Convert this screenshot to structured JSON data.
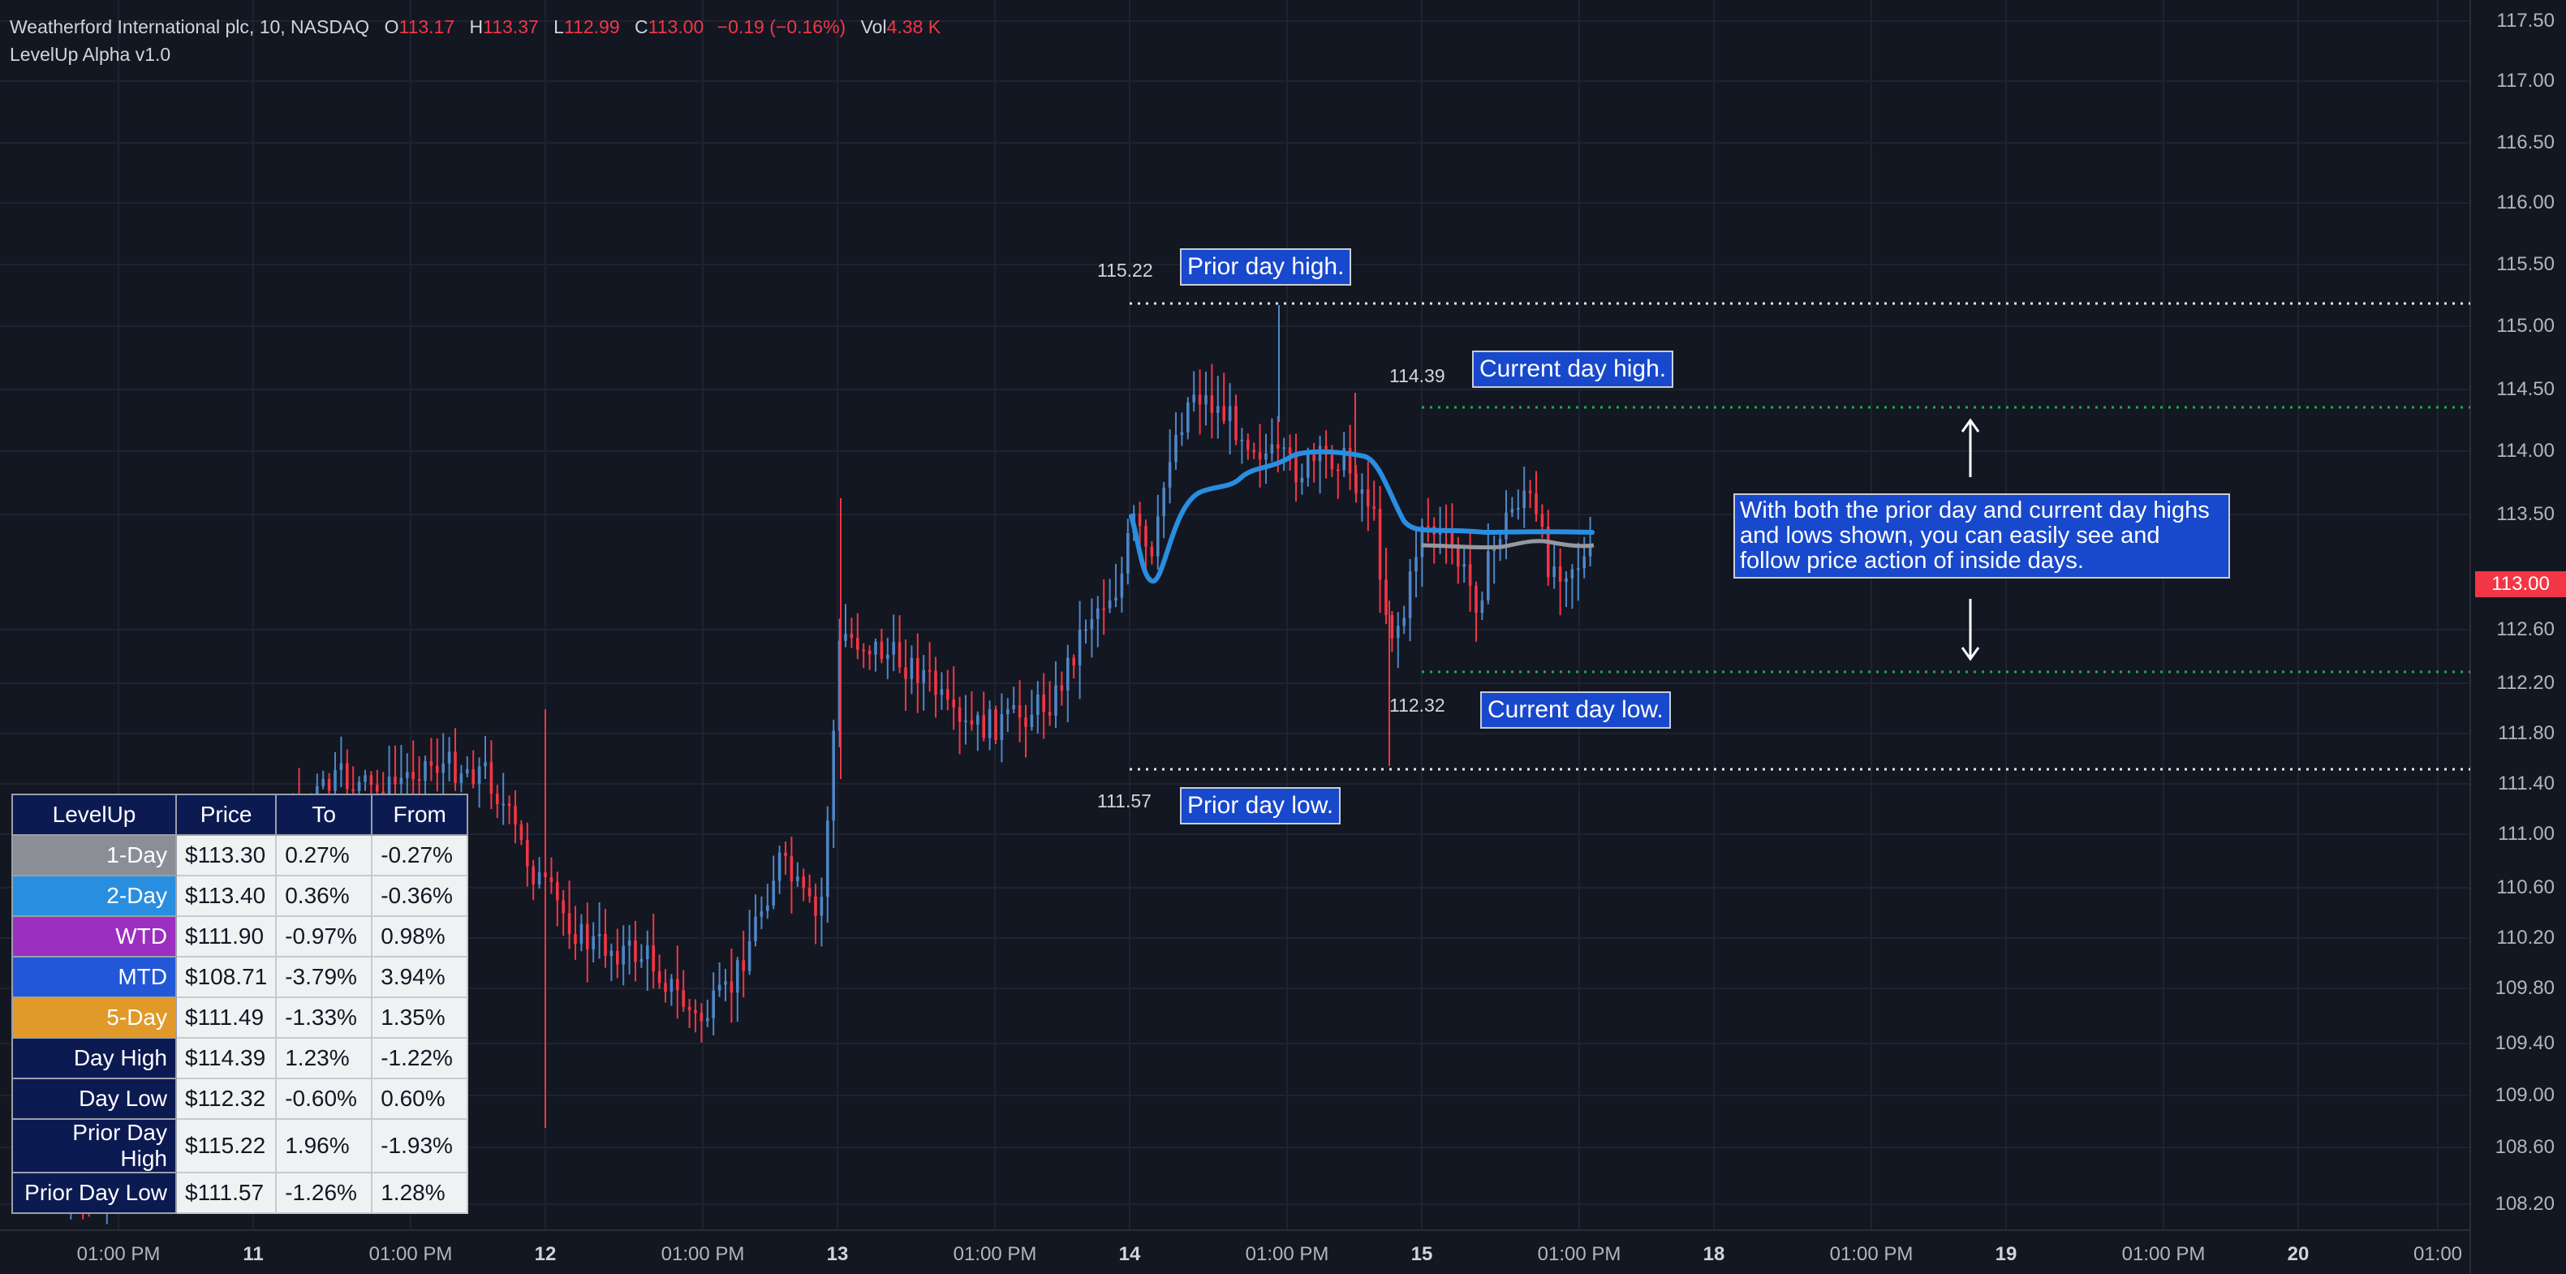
{
  "header": {
    "symbol": "Weatherford International plc, 10, NASDAQ",
    "open_label": "O",
    "open": "113.17",
    "high_label": "H",
    "high": "113.37",
    "low_label": "L",
    "low": "112.99",
    "close_label": "C",
    "close": "113.00",
    "change": "−0.19 (−0.16%)",
    "vol_label": "Vol",
    "vol": "4.38 K",
    "indicator": "LevelUp Alpha v1.0"
  },
  "colors": {
    "background": "#131722",
    "up_candle": "#4f86c6",
    "down_candle": "#f23645",
    "vwap_line": "#2a8ee0",
    "one_day_line": "#9598a1",
    "callout_bg": "#1848cc",
    "price_tag": "#f23645",
    "day_level": "#1fae4a"
  },
  "chart_data": {
    "type": "candlestick",
    "y_axis": {
      "labels": [
        "117.50",
        "117.00",
        "116.50",
        "116.00",
        "115.50",
        "115.00",
        "114.50",
        "114.00",
        "113.50",
        "112.60",
        "112.20",
        "111.80",
        "111.40",
        "111.00",
        "110.60",
        "110.20",
        "109.80",
        "109.40",
        "109.00",
        "108.60",
        "108.20"
      ],
      "current_price": "113.00"
    },
    "x_axis": {
      "labels": [
        {
          "text": "01:00 PM",
          "day": false
        },
        {
          "text": "11",
          "day": true
        },
        {
          "text": "01:00 PM",
          "day": false
        },
        {
          "text": "12",
          "day": true
        },
        {
          "text": "01:00 PM",
          "day": false
        },
        {
          "text": "13",
          "day": true
        },
        {
          "text": "01:00 PM",
          "day": false
        },
        {
          "text": "14",
          "day": true
        },
        {
          "text": "01:00 PM",
          "day": false
        },
        {
          "text": "15",
          "day": true
        },
        {
          "text": "01:00 PM",
          "day": false
        },
        {
          "text": "18",
          "day": true
        },
        {
          "text": "01:00 PM",
          "day": false
        },
        {
          "text": "19",
          "day": true
        },
        {
          "text": "01:00 PM",
          "day": false
        },
        {
          "text": "20",
          "day": true
        },
        {
          "text": "01:00",
          "day": false
        }
      ]
    },
    "levels": {
      "prior_day_high": {
        "value": "115.22",
        "callout": "Prior day high."
      },
      "prior_day_low": {
        "value": "111.57",
        "callout": "Prior day low."
      },
      "current_day_high": {
        "value": "114.39",
        "callout": "Current day high."
      },
      "current_day_low": {
        "value": "112.32",
        "callout": "Current day low."
      }
    },
    "note": "With both the prior day and current day highs and lows shown, you can easily see and follow price action of inside days."
  },
  "table": {
    "headers": [
      "LevelUp",
      "Price",
      "To",
      "From"
    ],
    "rows": [
      {
        "name": "1-Day",
        "color": "#8c8e96",
        "price": "$113.30",
        "to": "0.27%",
        "from": "-0.27%"
      },
      {
        "name": "2-Day",
        "color": "#2a8ee0",
        "price": "$113.40",
        "to": "0.36%",
        "from": "-0.36%"
      },
      {
        "name": "WTD",
        "color": "#9b2fc0",
        "price": "$111.90",
        "to": "-0.97%",
        "from": "0.98%"
      },
      {
        "name": "MTD",
        "color": "#2258d8",
        "price": "$108.71",
        "to": "-3.79%",
        "from": "3.94%"
      },
      {
        "name": "5-Day",
        "color": "#e09a2a",
        "price": "$111.49",
        "to": "-1.33%",
        "from": "1.35%"
      },
      {
        "name": "Day High",
        "color": "#0c1a52",
        "price": "$114.39",
        "to": "1.23%",
        "from": "-1.22%"
      },
      {
        "name": "Day Low",
        "color": "#0c1a52",
        "price": "$112.32",
        "to": "-0.60%",
        "from": "0.60%"
      },
      {
        "name": "Prior Day High",
        "color": "#0c1a52",
        "price": "$115.22",
        "to": "1.96%",
        "from": "-1.93%"
      },
      {
        "name": "Prior Day Low",
        "color": "#0c1a52",
        "price": "$111.57",
        "to": "-1.26%",
        "from": "1.28%"
      }
    ]
  }
}
